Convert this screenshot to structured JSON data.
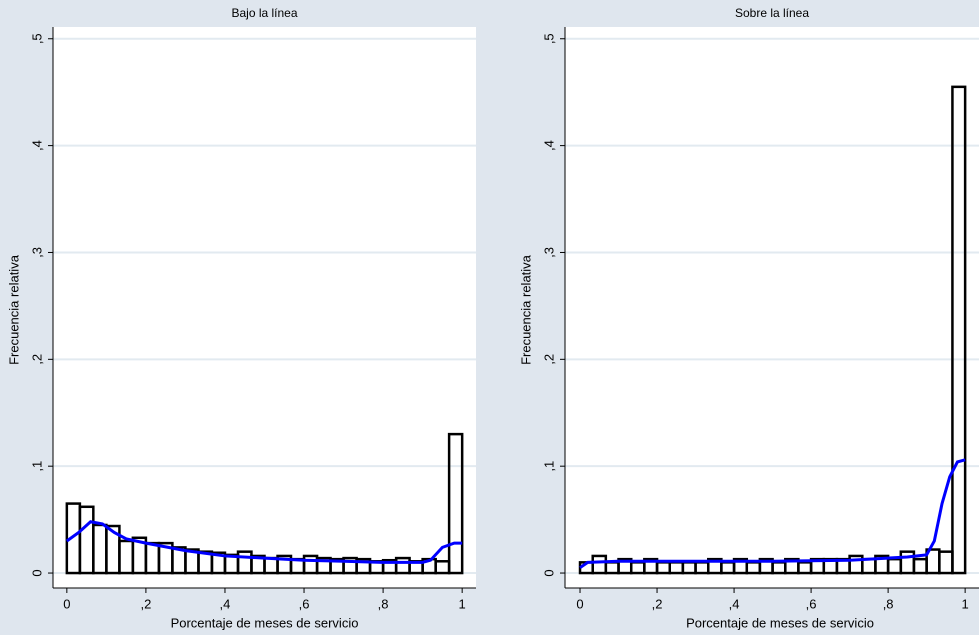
{
  "chart_data": [
    {
      "type": "histogram",
      "title": "Bajo la línea",
      "xlabel": "Porcentaje de meses de servicio",
      "ylabel": "Frecuencia relativa",
      "bins": [
        0,
        0.033,
        0.067,
        0.1,
        0.133,
        0.167,
        0.2,
        0.233,
        0.267,
        0.3,
        0.333,
        0.367,
        0.4,
        0.433,
        0.467,
        0.5,
        0.533,
        0.567,
        0.6,
        0.633,
        0.667,
        0.7,
        0.733,
        0.767,
        0.8,
        0.833,
        0.867,
        0.9,
        0.933,
        0.967,
        1
      ],
      "values": [
        0.065,
        0.062,
        0.045,
        0.044,
        0.03,
        0.033,
        0.028,
        0.028,
        0.024,
        0.022,
        0.02,
        0.019,
        0.017,
        0.02,
        0.016,
        0.014,
        0.016,
        0.013,
        0.016,
        0.014,
        0.013,
        0.014,
        0.013,
        0.011,
        0.012,
        0.014,
        0.011,
        0.013,
        0.011,
        0.13
      ],
      "color": "#000000",
      "density": {
        "x": [
          0,
          0.03,
          0.06,
          0.09,
          0.12,
          0.15,
          0.2,
          0.3,
          0.4,
          0.5,
          0.6,
          0.7,
          0.8,
          0.9,
          0.92,
          0.95,
          0.98,
          1
        ],
        "values": [
          0.03,
          0.038,
          0.048,
          0.046,
          0.038,
          0.032,
          0.028,
          0.021,
          0.016,
          0.014,
          0.012,
          0.011,
          0.01,
          0.01,
          0.012,
          0.024,
          0.028,
          0.028
        ],
        "color": "#0000ff"
      },
      "xlim": [
        -0.035,
        1.035
      ],
      "ylim": [
        -0.014,
        0.511
      ],
      "xticks": [
        0,
        {
          "value": 0.2,
          "label": ",2"
        },
        {
          "value": 0.4,
          "label": ",4"
        },
        {
          "value": 0.6,
          "label": ",6"
        },
        {
          "value": 0.8,
          "label": ",8"
        },
        1
      ],
      "yticks": [
        0,
        {
          "value": 0.1,
          "label": ",1"
        },
        {
          "value": 0.2,
          "label": ",2"
        },
        {
          "value": 0.3,
          "label": ",3"
        },
        {
          "value": 0.4,
          "label": ",4"
        },
        {
          "value": 0.5,
          "label": ",5"
        }
      ],
      "grid": true
    },
    {
      "type": "histogram",
      "title": "Sobre la línea",
      "xlabel": "Porcentaje de meses de servicio",
      "ylabel": "Frecuencia relativa",
      "bins": [
        0,
        0.033,
        0.067,
        0.1,
        0.133,
        0.167,
        0.2,
        0.233,
        0.267,
        0.3,
        0.333,
        0.367,
        0.4,
        0.433,
        0.467,
        0.5,
        0.533,
        0.567,
        0.6,
        0.633,
        0.667,
        0.7,
        0.733,
        0.767,
        0.8,
        0.833,
        0.867,
        0.9,
        0.933,
        0.967,
        1
      ],
      "values": [
        0.01,
        0.016,
        0.01,
        0.013,
        0.01,
        0.013,
        0.01,
        0.01,
        0.01,
        0.01,
        0.013,
        0.01,
        0.013,
        0.01,
        0.013,
        0.01,
        0.013,
        0.01,
        0.013,
        0.013,
        0.013,
        0.016,
        0.013,
        0.016,
        0.013,
        0.02,
        0.013,
        0.022,
        0.02,
        0.455
      ],
      "color": "#000000",
      "density": {
        "x": [
          0,
          0.02,
          0.1,
          0.5,
          0.7,
          0.85,
          0.9,
          0.92,
          0.94,
          0.96,
          0.98,
          1
        ],
        "values": [
          0.005,
          0.01,
          0.011,
          0.011,
          0.012,
          0.015,
          0.017,
          0.03,
          0.065,
          0.09,
          0.104,
          0.106
        ],
        "color": "#0000ff"
      },
      "xlim": [
        -0.039,
        1.036
      ],
      "ylim": [
        -0.014,
        0.511
      ],
      "xticks": [
        0,
        {
          "value": 0.2,
          "label": ",2"
        },
        {
          "value": 0.4,
          "label": ",4"
        },
        {
          "value": 0.6,
          "label": ",6"
        },
        {
          "value": 0.8,
          "label": ",8"
        },
        1
      ],
      "yticks": [
        0,
        {
          "value": 0.1,
          "label": ",1"
        },
        {
          "value": 0.2,
          "label": ",2"
        },
        {
          "value": 0.3,
          "label": ",3"
        },
        {
          "value": 0.4,
          "label": ",4"
        },
        {
          "value": 0.5,
          "label": ",5"
        }
      ],
      "grid": true
    }
  ]
}
